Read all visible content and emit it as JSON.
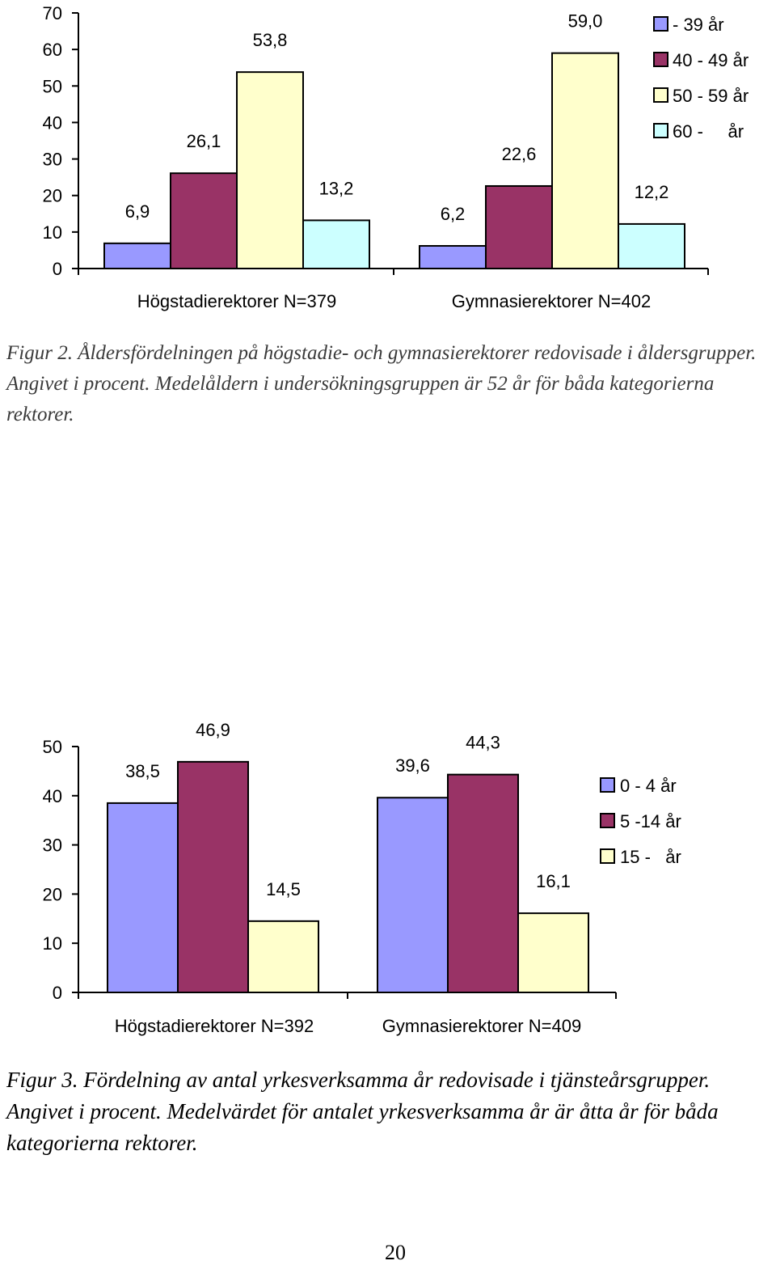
{
  "chart_data": [
    {
      "type": "bar",
      "categories": [
        "Högstadierektorer N=379",
        "Gymnasierektorer N=402"
      ],
      "series": [
        {
          "name": "- 39 år",
          "values": [
            6.9,
            6.2
          ],
          "color": "#9999ff"
        },
        {
          "name": "40 - 49 år",
          "values": [
            26.1,
            22.6
          ],
          "color": "#993366"
        },
        {
          "name": "50 - 59 år",
          "values": [
            53.8,
            59.0
          ],
          "color": "#ffffcc"
        },
        {
          "name": "60 -     år",
          "values": [
            13.2,
            12.2
          ],
          "color": "#ccffff"
        }
      ],
      "value_labels": [
        [
          "6,9",
          "6,2"
        ],
        [
          "26,1",
          "22,6"
        ],
        [
          "53,8",
          "59,0"
        ],
        [
          "13,2",
          "12,2"
        ]
      ],
      "y_ticks": [
        "0",
        "10",
        "20",
        "30",
        "40",
        "50",
        "60",
        "70"
      ],
      "ylim": [
        0,
        70
      ],
      "legend_position": "top-right",
      "grid": false
    },
    {
      "type": "bar",
      "categories": [
        "Högstadierektorer N=392",
        "Gymnasierektorer N=409"
      ],
      "series": [
        {
          "name": "0 - 4 år",
          "values": [
            38.5,
            39.6
          ],
          "color": "#9999ff"
        },
        {
          "name": "5 -14 år",
          "values": [
            46.9,
            44.3
          ],
          "color": "#993366"
        },
        {
          "name": "15 -   år",
          "values": [
            14.5,
            16.1
          ],
          "color": "#ffffcc"
        }
      ],
      "value_labels": [
        [
          "38,5",
          "39,6"
        ],
        [
          "46,9",
          "44,3"
        ],
        [
          "14,5",
          "16,1"
        ]
      ],
      "y_ticks": [
        "0",
        "10",
        "20",
        "30",
        "40",
        "50"
      ],
      "ylim": [
        0,
        50
      ],
      "legend_position": "right",
      "grid": false
    }
  ],
  "captions": [
    "Figur 2. Åldersfördelningen på högstadie- och gymnasierektorer redovisade i åldersgrupper. Angivet i procent. Medelåldern i undersökningsgruppen är 52 år för båda kategorierna rektorer.",
    "Figur 3. Fördelning av antal yrkesverksamma år redovisade i tjänsteårsgrupper. Angivet i procent. Medelvärdet för antalet yrkesverksamma år är åtta år för båda kategorierna rektorer."
  ],
  "page_number": "20"
}
